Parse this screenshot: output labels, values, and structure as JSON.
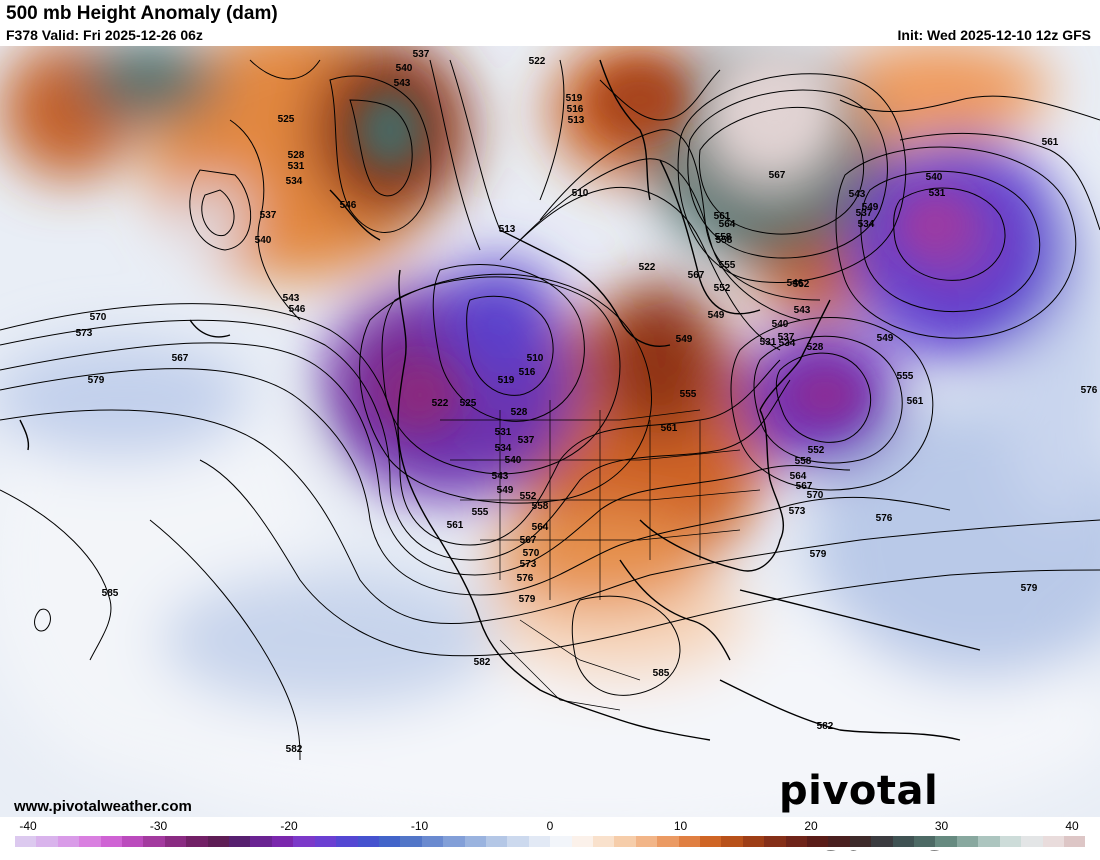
{
  "header": {
    "title": "500 mb Height Anomaly (dam)",
    "valid": "F378 Valid: Fri 2025-12-26 06z",
    "init": "Init: Wed 2025-12-10 12z GFS"
  },
  "footer": {
    "website": "www.pivotalweather.com",
    "brand": "pivotal weather"
  },
  "colorbar": {
    "ticks": [
      "-40",
      "-30",
      "-20",
      "-10",
      "0",
      "10",
      "20",
      "30",
      "40"
    ],
    "colors": [
      "#dcc9ef",
      "#d9b3ec",
      "#d99be8",
      "#d97fe0",
      "#cf63d4",
      "#bb4bbd",
      "#a33a9f",
      "#8a2b82",
      "#722066",
      "#5e1d55",
      "#571f6f",
      "#6a2392",
      "#7a27ad",
      "#7c39c9",
      "#6b3fd2",
      "#5447d3",
      "#4552cf",
      "#4264c9",
      "#5276c8",
      "#6a8ad0",
      "#829fd8",
      "#9ab3df",
      "#b4c7e6",
      "#ccd9ee",
      "#e2e9f5",
      "#f2f5fa",
      "#fbf1ea",
      "#f9e1cc",
      "#f6cdaa",
      "#f2b588",
      "#eb9a63",
      "#e07f42",
      "#cf6525",
      "#b8511a",
      "#9e3e16",
      "#852f18",
      "#6f2419",
      "#5a1c18",
      "#4a1f1f",
      "#3e2a2a",
      "#3b3b3f",
      "#3f5253",
      "#4d6a65",
      "#668a80",
      "#88a89f",
      "#acc5bf",
      "#cddcd9",
      "#e3e5e6",
      "#e9dcdc",
      "#ddc6c6"
    ]
  },
  "map": {
    "contour_labels": [
      "537",
      "540",
      "543",
      "522",
      "519",
      "516",
      "513",
      "510",
      "525",
      "528",
      "531",
      "534",
      "546",
      "537",
      "540",
      "543",
      "546",
      "570",
      "573",
      "567",
      "579",
      "585",
      "582",
      "582",
      "585",
      "582",
      "567",
      "564",
      "558",
      "549",
      "561",
      "543",
      "537",
      "534",
      "540",
      "531",
      "549",
      "555",
      "561",
      "576",
      "576",
      "579",
      "579",
      "552",
      "558",
      "564",
      "567",
      "570",
      "573",
      "552",
      "549",
      "546",
      "543",
      "540",
      "537",
      "534",
      "531",
      "528",
      "555",
      "561",
      "567",
      "561",
      "558",
      "555",
      "552",
      "549",
      "522",
      "510",
      "516",
      "519",
      "522",
      "525",
      "528",
      "531",
      "534",
      "537",
      "540",
      "543",
      "549",
      "552",
      "555",
      "558",
      "561",
      "564",
      "567",
      "570",
      "573",
      "576",
      "579",
      "513"
    ]
  }
}
